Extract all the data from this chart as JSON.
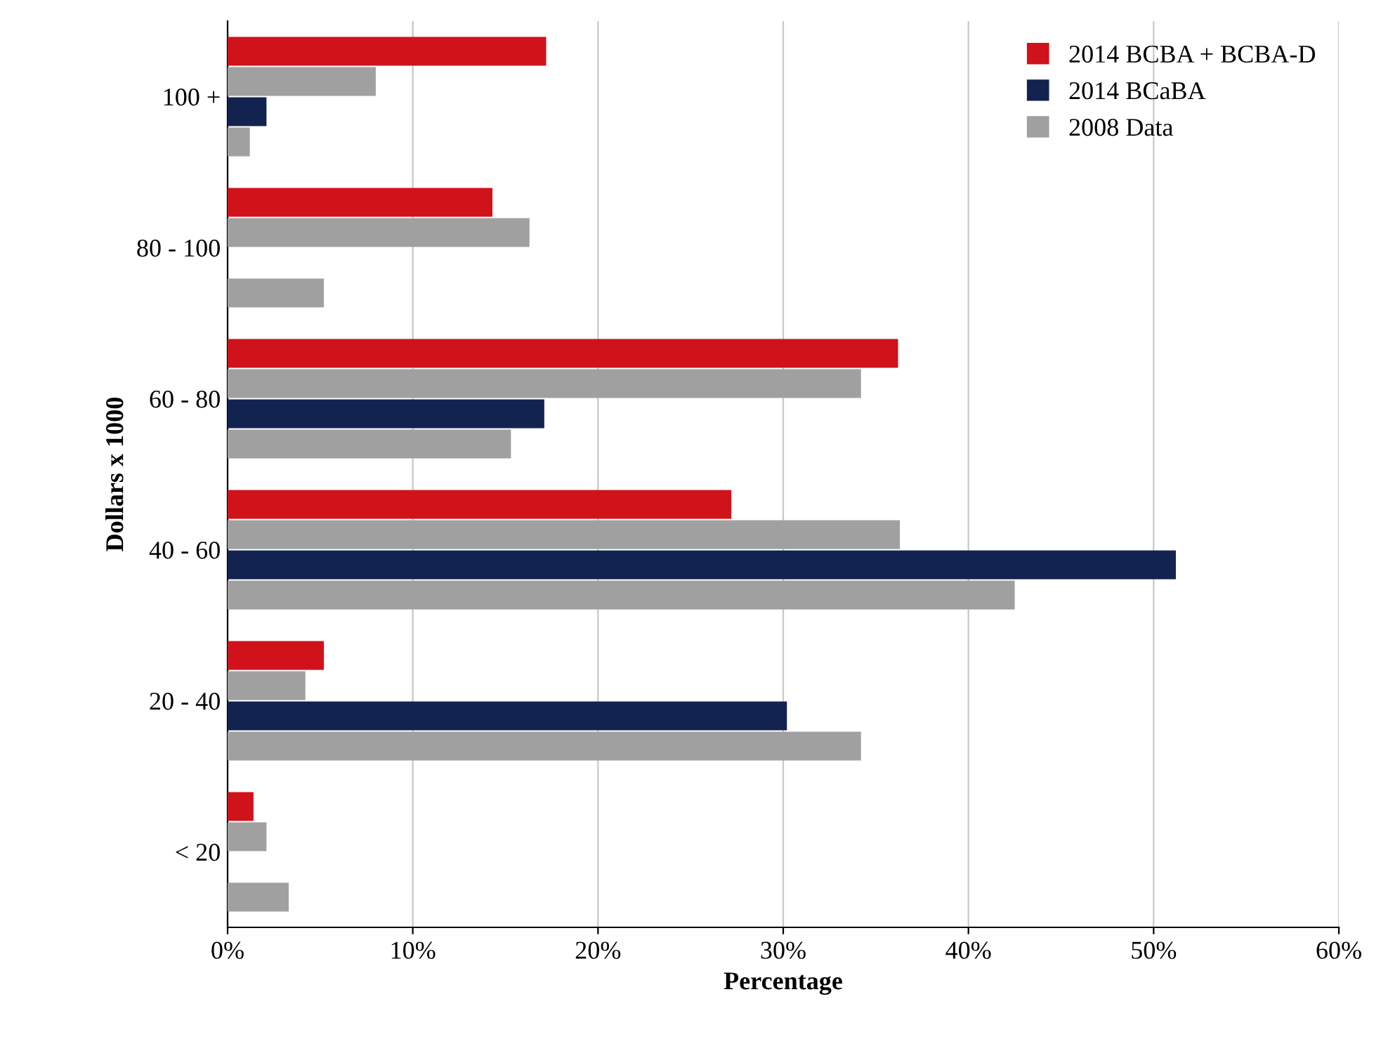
{
  "chart_data": {
    "type": "bar",
    "orientation": "horizontal",
    "xlabel": "Percentage",
    "ylabel": "Dollars x 1000",
    "categories": [
      "100 +",
      "80 - 100",
      "60 - 80",
      "40 - 60",
      "20 - 40",
      "< 20"
    ],
    "series": [
      {
        "name": "2014 BCBA + BCBA-D",
        "color": "#d0121b",
        "values": [
          17.2,
          14.3,
          36.2,
          27.2,
          5.2,
          1.4
        ]
      },
      {
        "color": "#a0a0a0",
        "values": [
          8.0,
          16.3,
          34.2,
          36.3,
          4.2,
          2.1
        ]
      },
      {
        "name": "2014 BCaBA",
        "color": "#13234f",
        "values": [
          2.1,
          null,
          17.1,
          51.2,
          30.2,
          null
        ]
      },
      {
        "name": "2008 Data",
        "color": "#a0a0a0",
        "values": [
          1.2,
          5.2,
          15.3,
          42.5,
          34.2,
          3.3
        ]
      }
    ],
    "xlim": [
      0,
      60
    ],
    "xticks": [
      {
        "value": 0,
        "label": "0%"
      },
      {
        "value": 10,
        "label": "10%"
      },
      {
        "value": 20,
        "label": "20%"
      },
      {
        "value": 30,
        "label": "30%"
      },
      {
        "value": 40,
        "label": "40%"
      },
      {
        "value": 50,
        "label": "50%"
      },
      {
        "value": 60,
        "label": "60%"
      }
    ],
    "grid": "x",
    "legend": "top right"
  }
}
